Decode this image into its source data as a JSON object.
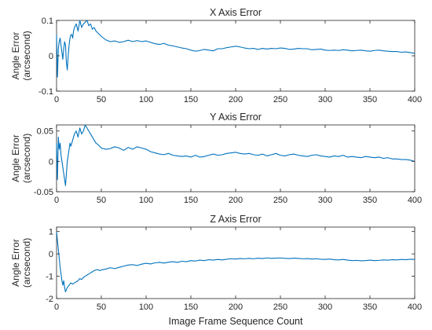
{
  "x_label": "Image Frame Sequence Count",
  "colors": {
    "line": "#0072BD",
    "axes": "#262626",
    "background": "#ffffff"
  },
  "chart_data": [
    {
      "type": "line",
      "title": "X Axis Error",
      "ylabel_lines": [
        "Angle Error",
        "(arcsecond)"
      ],
      "xlim": [
        0,
        400
      ],
      "ylim": [
        -0.1,
        0.1
      ],
      "xticks": [
        "0",
        "50",
        "100",
        "150",
        "200",
        "250",
        "300",
        "350",
        "400"
      ],
      "yticks": [
        {
          "value": -0.1,
          "label": "-0.1"
        },
        {
          "value": 0,
          "label": "0"
        },
        {
          "value": 0.1,
          "label": "0.1"
        }
      ],
      "grid": false,
      "series": [
        {
          "x": [
            0,
            1,
            2,
            3,
            4,
            5,
            6,
            7,
            8,
            9,
            10,
            11,
            12,
            13,
            14,
            15,
            16,
            17,
            18,
            19,
            20,
            22,
            24,
            26,
            28,
            30,
            32,
            34,
            36,
            38,
            40,
            42,
            44,
            46,
            48,
            50,
            55,
            60,
            65,
            70,
            75,
            80,
            85,
            90,
            95,
            100,
            105,
            110,
            115,
            120,
            125,
            130,
            135,
            140,
            145,
            150,
            155,
            160,
            165,
            170,
            175,
            180,
            185,
            190,
            195,
            200,
            205,
            210,
            215,
            220,
            225,
            230,
            235,
            240,
            245,
            250,
            255,
            260,
            265,
            270,
            275,
            280,
            285,
            290,
            295,
            300,
            305,
            310,
            315,
            320,
            325,
            330,
            335,
            340,
            345,
            350,
            355,
            360,
            365,
            370,
            375,
            380,
            385,
            390,
            395,
            400
          ],
          "values": [
            0.06,
            -0.06,
            0.02,
            0.04,
            0.05,
            0.03,
            0.01,
            -0.01,
            0.02,
            0.04,
            0.03,
            -0.02,
            -0.04,
            0.0,
            0.03,
            0.05,
            0.06,
            0.06,
            0.05,
            0.07,
            0.08,
            0.09,
            0.07,
            0.1,
            0.08,
            0.09,
            0.095,
            0.1,
            0.085,
            0.09,
            0.075,
            0.08,
            0.07,
            0.065,
            0.06,
            0.055,
            0.045,
            0.04,
            0.042,
            0.038,
            0.04,
            0.044,
            0.04,
            0.043,
            0.04,
            0.042,
            0.038,
            0.034,
            0.032,
            0.035,
            0.03,
            0.028,
            0.025,
            0.022,
            0.02,
            0.016,
            0.013,
            0.015,
            0.018,
            0.016,
            0.014,
            0.02,
            0.02,
            0.023,
            0.025,
            0.027,
            0.025,
            0.022,
            0.02,
            0.021,
            0.018,
            0.021,
            0.019,
            0.021,
            0.02,
            0.022,
            0.021,
            0.018,
            0.019,
            0.021,
            0.02,
            0.02,
            0.017,
            0.018,
            0.019,
            0.016,
            0.015,
            0.016,
            0.015,
            0.017,
            0.016,
            0.014,
            0.015,
            0.016,
            0.014,
            0.013,
            0.015,
            0.016,
            0.014,
            0.013,
            0.012,
            0.012,
            0.01,
            0.011,
            0.009,
            0.007
          ]
        }
      ]
    },
    {
      "type": "line",
      "title": "Y Axis Error",
      "ylabel_lines": [
        "Angle Error",
        "(arcsecond)"
      ],
      "xlim": [
        0,
        400
      ],
      "ylim": [
        -0.05,
        0.06
      ],
      "xticks": [
        "0",
        "50",
        "100",
        "150",
        "200",
        "250",
        "300",
        "350",
        "400"
      ],
      "yticks": [
        {
          "value": -0.05,
          "label": "-0.05"
        },
        {
          "value": 0,
          "label": "0"
        },
        {
          "value": 0.05,
          "label": "0.05"
        }
      ],
      "grid": false,
      "series": [
        {
          "x": [
            0,
            1,
            2,
            3,
            4,
            5,
            6,
            7,
            8,
            9,
            10,
            11,
            12,
            13,
            14,
            15,
            16,
            17,
            18,
            19,
            20,
            22,
            24,
            26,
            28,
            30,
            32,
            34,
            36,
            38,
            40,
            42,
            44,
            46,
            48,
            50,
            55,
            60,
            65,
            70,
            75,
            80,
            85,
            90,
            95,
            100,
            105,
            110,
            115,
            120,
            125,
            130,
            135,
            140,
            145,
            150,
            155,
            160,
            165,
            170,
            175,
            180,
            185,
            190,
            195,
            200,
            205,
            210,
            215,
            220,
            225,
            230,
            235,
            240,
            245,
            250,
            255,
            260,
            265,
            270,
            275,
            280,
            285,
            290,
            295,
            300,
            305,
            310,
            315,
            320,
            325,
            330,
            335,
            340,
            345,
            350,
            355,
            360,
            365,
            370,
            375,
            380,
            385,
            390,
            395,
            400
          ],
          "values": [
            0.03,
            -0.03,
            0.04,
            0.02,
            0.03,
            0.01,
            0.0,
            -0.01,
            -0.02,
            -0.03,
            -0.04,
            -0.02,
            0.0,
            0.01,
            0.02,
            0.03,
            0.025,
            0.03,
            0.035,
            0.04,
            0.045,
            0.05,
            0.04,
            0.055,
            0.045,
            0.05,
            0.06,
            0.055,
            0.05,
            0.045,
            0.04,
            0.035,
            0.03,
            0.028,
            0.025,
            0.022,
            0.02,
            0.021,
            0.024,
            0.022,
            0.018,
            0.023,
            0.02,
            0.024,
            0.022,
            0.02,
            0.016,
            0.014,
            0.012,
            0.011,
            0.013,
            0.01,
            0.009,
            0.008,
            0.009,
            0.007,
            0.01,
            0.007,
            0.008,
            0.01,
            0.012,
            0.01,
            0.011,
            0.013,
            0.014,
            0.015,
            0.013,
            0.012,
            0.013,
            0.011,
            0.01,
            0.012,
            0.009,
            0.011,
            0.013,
            0.01,
            0.009,
            0.011,
            0.012,
            0.01,
            0.009,
            0.008,
            0.01,
            0.011,
            0.009,
            0.008,
            0.007,
            0.009,
            0.008,
            0.01,
            0.007,
            0.008,
            0.007,
            0.006,
            0.008,
            0.007,
            0.006,
            0.007,
            0.005,
            0.006,
            0.004,
            0.004,
            0.003,
            0.003,
            0.002,
            0.0
          ]
        }
      ]
    },
    {
      "type": "line",
      "title": "Z Axis Error",
      "ylabel_lines": [
        "Angle Error",
        "(arcsecond)"
      ],
      "xlim": [
        0,
        400
      ],
      "ylim": [
        -2,
        1.2
      ],
      "xticks": [
        "0",
        "50",
        "100",
        "150",
        "200",
        "250",
        "300",
        "350",
        "400"
      ],
      "yticks": [
        {
          "value": -2,
          "label": "-2"
        },
        {
          "value": -1,
          "label": "-1"
        },
        {
          "value": 0,
          "label": "0"
        },
        {
          "value": 1,
          "label": "1"
        }
      ],
      "grid": false,
      "series": [
        {
          "x": [
            0,
            1,
            2,
            3,
            4,
            5,
            6,
            7,
            8,
            9,
            10,
            12,
            14,
            16,
            18,
            20,
            22,
            24,
            26,
            28,
            30,
            32,
            34,
            36,
            38,
            40,
            42,
            44,
            46,
            48,
            50,
            55,
            60,
            65,
            70,
            75,
            80,
            85,
            90,
            95,
            100,
            105,
            110,
            115,
            120,
            125,
            130,
            135,
            140,
            145,
            150,
            155,
            160,
            165,
            170,
            175,
            180,
            185,
            190,
            195,
            200,
            205,
            210,
            215,
            220,
            225,
            230,
            235,
            240,
            245,
            250,
            255,
            260,
            265,
            270,
            275,
            280,
            285,
            290,
            295,
            300,
            305,
            310,
            315,
            320,
            325,
            330,
            335,
            340,
            345,
            350,
            355,
            360,
            365,
            370,
            375,
            380,
            385,
            390,
            395,
            400
          ],
          "values": [
            1.0,
            0.6,
            0.2,
            -0.2,
            -0.6,
            -0.9,
            -1.2,
            -1.4,
            -1.2,
            -1.5,
            -1.7,
            -1.5,
            -1.4,
            -1.3,
            -1.35,
            -1.3,
            -1.25,
            -1.2,
            -1.1,
            -1.15,
            -1.05,
            -1.0,
            -0.95,
            -0.9,
            -0.85,
            -0.8,
            -0.75,
            -0.72,
            -0.7,
            -0.75,
            -0.72,
            -0.68,
            -0.62,
            -0.66,
            -0.6,
            -0.55,
            -0.5,
            -0.48,
            -0.52,
            -0.46,
            -0.42,
            -0.45,
            -0.4,
            -0.38,
            -0.41,
            -0.37,
            -0.35,
            -0.38,
            -0.33,
            -0.35,
            -0.3,
            -0.32,
            -0.28,
            -0.3,
            -0.26,
            -0.28,
            -0.25,
            -0.27,
            -0.24,
            -0.22,
            -0.23,
            -0.21,
            -0.22,
            -0.2,
            -0.22,
            -0.19,
            -0.21,
            -0.18,
            -0.2,
            -0.19,
            -0.18,
            -0.2,
            -0.21,
            -0.19,
            -0.2,
            -0.22,
            -0.21,
            -0.23,
            -0.22,
            -0.24,
            -0.25,
            -0.23,
            -0.26,
            -0.27,
            -0.25,
            -0.28,
            -0.3,
            -0.29,
            -0.31,
            -0.3,
            -0.28,
            -0.3,
            -0.29,
            -0.27,
            -0.28,
            -0.26,
            -0.27,
            -0.25,
            -0.26,
            -0.24,
            -0.25
          ]
        }
      ]
    }
  ]
}
